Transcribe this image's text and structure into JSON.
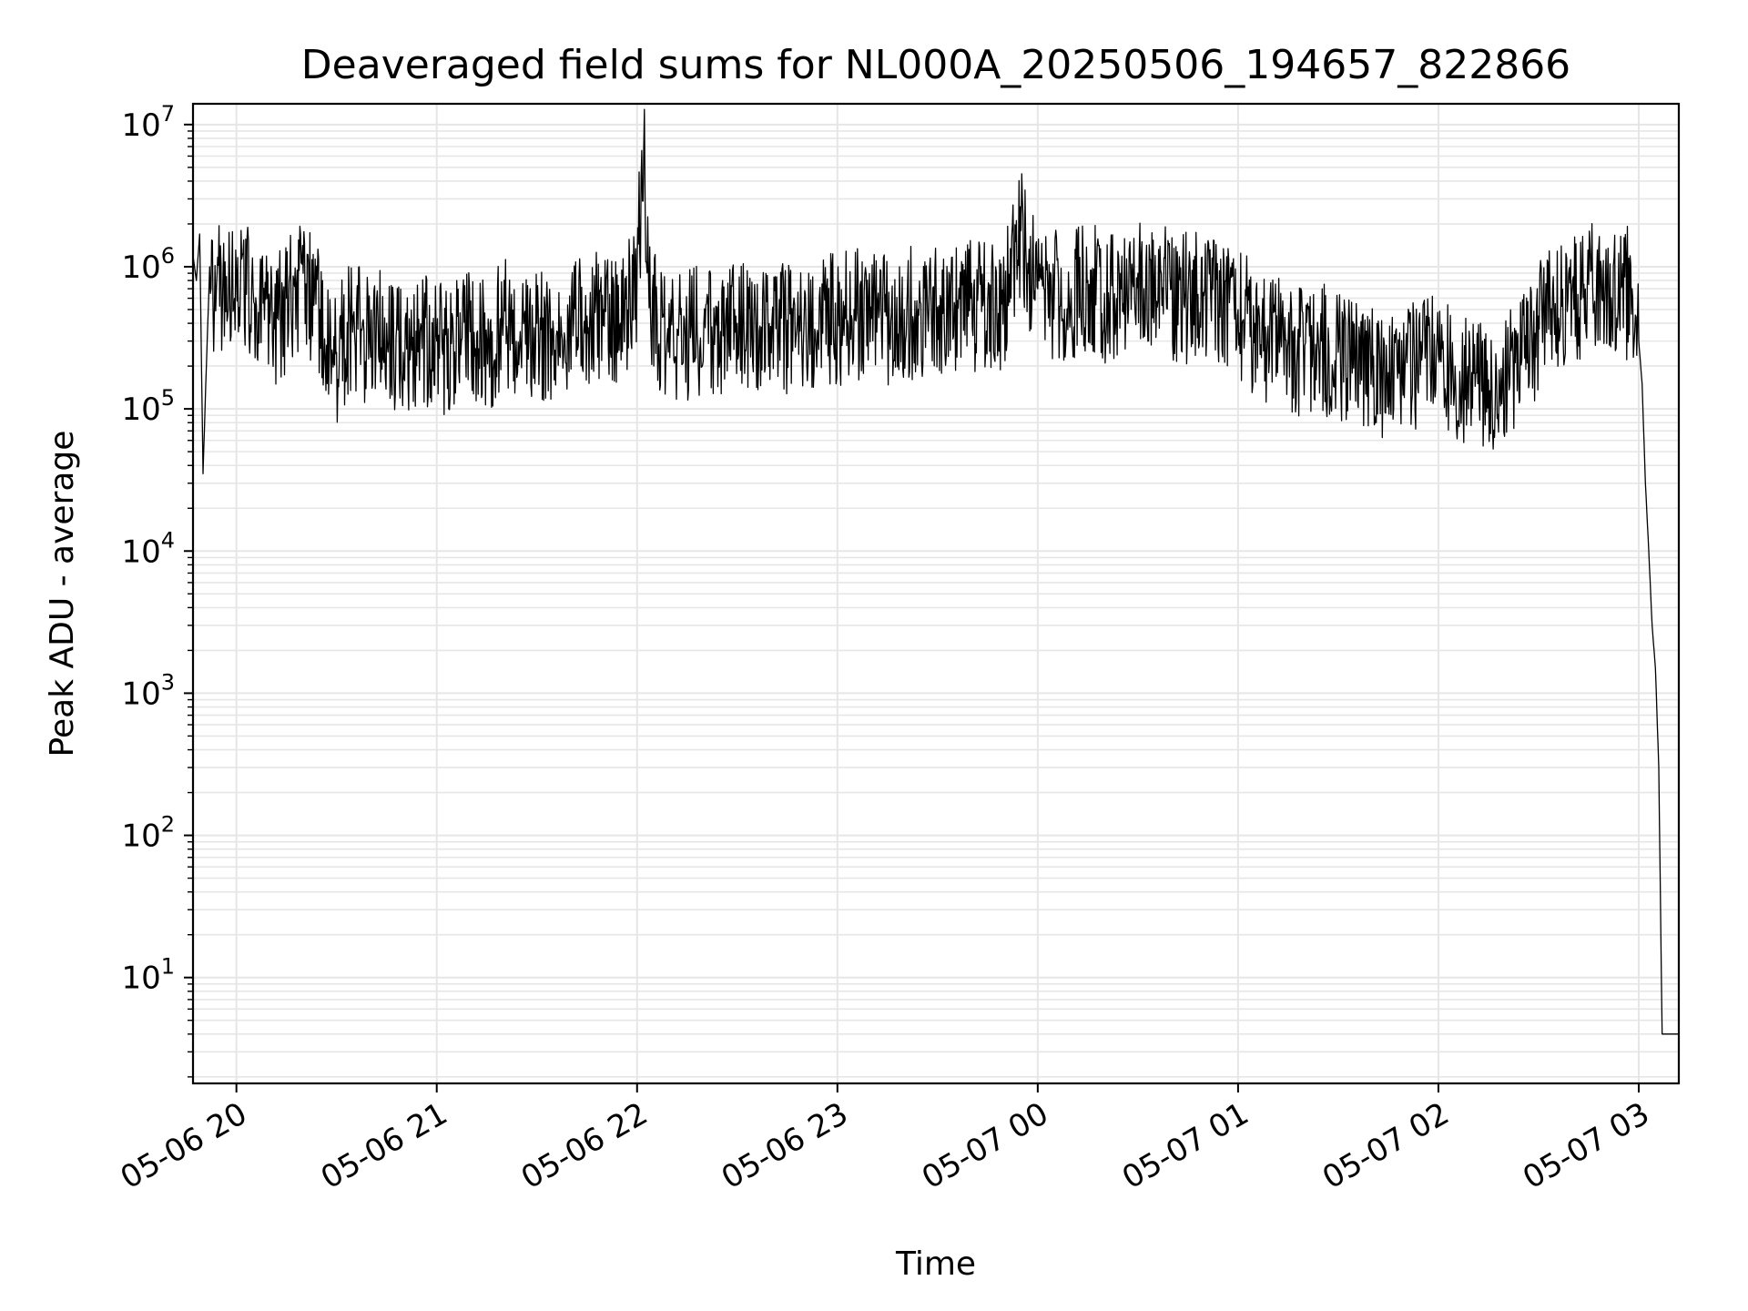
{
  "chart_data": {
    "type": "line",
    "title": "Deaveraged field sums for NL000A_20250506_194657_822866",
    "xlabel": "Time",
    "ylabel": "Peak ADU - average",
    "yscale": "log",
    "ylim": [
      1.8,
      14000000
    ],
    "xlim": [
      "2025-05-06 19:47",
      "2025-05-07 03:12"
    ],
    "grid": true,
    "line_color": "#000000",
    "grid_color": "#e6e6e6",
    "x_ticks": [
      {
        "value": "2025-05-06 20:00",
        "label": "05-06 20"
      },
      {
        "value": "2025-05-06 21:00",
        "label": "05-06 21"
      },
      {
        "value": "2025-05-06 22:00",
        "label": "05-06 22"
      },
      {
        "value": "2025-05-06 23:00",
        "label": "05-06 23"
      },
      {
        "value": "2025-05-07 00:00",
        "label": "05-07 00"
      },
      {
        "value": "2025-05-07 01:00",
        "label": "05-07 01"
      },
      {
        "value": "2025-05-07 02:00",
        "label": "05-07 02"
      },
      {
        "value": "2025-05-07 03:00",
        "label": "05-07 03"
      }
    ],
    "y_ticks": [
      {
        "value": 10,
        "base": "10",
        "exp": "1"
      },
      {
        "value": 100,
        "base": "10",
        "exp": "2"
      },
      {
        "value": 1000,
        "base": "10",
        "exp": "3"
      },
      {
        "value": 10000,
        "base": "10",
        "exp": "4"
      },
      {
        "value": 100000,
        "base": "10",
        "exp": "5"
      },
      {
        "value": 1000000,
        "base": "10",
        "exp": "6"
      },
      {
        "value": 10000000,
        "base": "10",
        "exp": "7"
      }
    ],
    "series": [
      {
        "x": [
          "2025-05-06 19:47",
          "2025-05-06 19:48",
          "2025-05-06 19:49",
          "2025-05-06 19:50",
          "2025-05-06 19:51",
          "2025-05-06 19:52",
          "2025-05-06 19:54",
          "2025-05-06 19:56",
          "2025-05-06 19:58",
          "2025-05-06 20:00",
          "2025-05-06 20:05",
          "2025-05-06 20:10",
          "2025-05-06 20:15",
          "2025-05-06 20:20",
          "2025-05-06 20:25",
          "2025-05-06 20:30",
          "2025-05-06 20:35",
          "2025-05-06 20:40",
          "2025-05-06 20:45",
          "2025-05-06 20:50",
          "2025-05-06 20:55",
          "2025-05-06 21:00",
          "2025-05-06 21:05",
          "2025-05-06 21:10",
          "2025-05-06 21:15",
          "2025-05-06 21:20",
          "2025-05-06 21:25",
          "2025-05-06 21:30",
          "2025-05-06 21:35",
          "2025-05-06 21:40",
          "2025-05-06 21:45",
          "2025-05-06 21:50",
          "2025-05-06 21:55",
          "2025-05-06 22:00",
          "2025-05-06 22:02",
          "2025-05-06 22:04",
          "2025-05-06 22:06",
          "2025-05-06 22:10",
          "2025-05-06 22:15",
          "2025-05-06 22:20",
          "2025-05-06 22:25",
          "2025-05-06 22:30",
          "2025-05-06 22:35",
          "2025-05-06 22:40",
          "2025-05-06 22:45",
          "2025-05-06 22:50",
          "2025-05-06 22:55",
          "2025-05-06 23:00",
          "2025-05-06 23:05",
          "2025-05-06 23:10",
          "2025-05-06 23:15",
          "2025-05-06 23:20",
          "2025-05-06 23:25",
          "2025-05-06 23:30",
          "2025-05-06 23:35",
          "2025-05-06 23:40",
          "2025-05-06 23:45",
          "2025-05-06 23:50",
          "2025-05-06 23:55",
          "2025-05-07 00:00",
          "2025-05-07 00:05",
          "2025-05-07 00:10",
          "2025-05-07 00:15",
          "2025-05-07 00:20",
          "2025-05-07 00:25",
          "2025-05-07 00:30",
          "2025-05-07 00:35",
          "2025-05-07 00:40",
          "2025-05-07 00:45",
          "2025-05-07 00:50",
          "2025-05-07 00:55",
          "2025-05-07 01:00",
          "2025-05-07 01:05",
          "2025-05-07 01:10",
          "2025-05-07 01:15",
          "2025-05-07 01:20",
          "2025-05-07 01:25",
          "2025-05-07 01:30",
          "2025-05-07 01:35",
          "2025-05-07 01:40",
          "2025-05-07 01:45",
          "2025-05-07 01:50",
          "2025-05-07 01:55",
          "2025-05-07 02:00",
          "2025-05-07 02:05",
          "2025-05-07 02:10",
          "2025-05-07 02:15",
          "2025-05-07 02:20",
          "2025-05-07 02:25",
          "2025-05-07 02:30",
          "2025-05-07 02:35",
          "2025-05-07 02:40",
          "2025-05-07 02:45",
          "2025-05-07 02:50",
          "2025-05-07 02:55",
          "2025-05-07 02:58",
          "2025-05-07 03:00",
          "2025-05-07 03:01",
          "2025-05-07 03:02",
          "2025-05-07 03:03",
          "2025-05-07 03:04",
          "2025-05-07 03:05",
          "2025-05-07 03:06",
          "2025-05-07 03:07",
          "2025-05-07 03:08",
          "2025-05-07 03:09",
          "2025-05-07 03:10",
          "2025-05-07 03:11",
          "2025-05-07 03:12"
        ],
        "y": [
          1200000,
          800000,
          1700000,
          35000,
          200000,
          1000000,
          700000,
          900000,
          800000,
          900000,
          700000,
          400000,
          600000,
          900000,
          500000,
          250000,
          450000,
          300000,
          400000,
          250000,
          350000,
          300000,
          300000,
          350000,
          300000,
          450000,
          350000,
          400000,
          350000,
          400000,
          450000,
          500000,
          400000,
          1000000,
          7000000,
          500000,
          450000,
          400000,
          350000,
          400000,
          350000,
          400000,
          450000,
          380000,
          420000,
          400000,
          450000,
          480000,
          500000,
          520000,
          450000,
          500000,
          550000,
          520000,
          560000,
          600000,
          580000,
          600000,
          1800000,
          700000,
          750000,
          700000,
          800000,
          650000,
          700000,
          900000,
          750000,
          700000,
          650000,
          700000,
          600000,
          500000,
          400000,
          350000,
          300000,
          280000,
          300000,
          250000,
          220000,
          200000,
          180000,
          200000,
          220000,
          240000,
          200000,
          180000,
          160000,
          200000,
          220000,
          450000,
          550000,
          650000,
          750000,
          800000,
          750000,
          700000,
          300000,
          150000,
          30000,
          10000,
          3000,
          1500,
          300,
          4,
          4,
          4,
          4,
          4,
          4
        ]
      }
    ]
  }
}
